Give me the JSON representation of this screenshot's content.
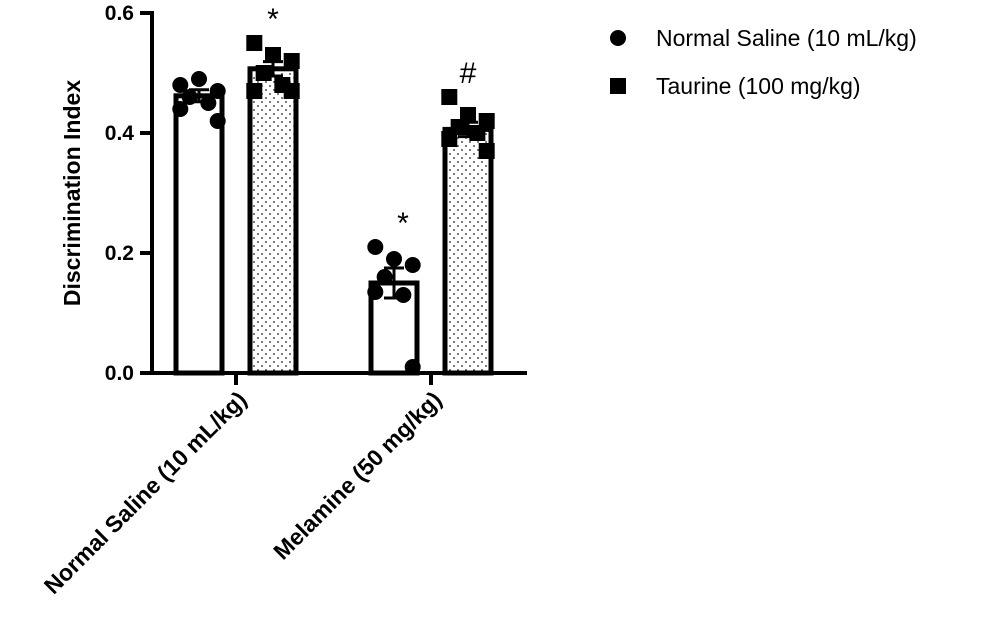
{
  "chart_data": {
    "type": "bar",
    "ylabel": "Discrimination Index",
    "ylim": [
      0.0,
      0.6
    ],
    "yticks": [
      "0.0",
      "0.2",
      "0.4",
      "0.6"
    ],
    "categories": [
      "Normal Saline (10 mL/kg)",
      "Melamine (50 mg/kg)"
    ],
    "legend_position": "top-right",
    "series": [
      {
        "name": "Normal Saline (10 mL/kg)",
        "marker": "circle",
        "fill": "none",
        "values": [
          0.462,
          0.15
        ],
        "sem": [
          0.01,
          0.025
        ],
        "points": [
          [
            0.48,
            0.49,
            0.47,
            0.46,
            0.45,
            0.44,
            0.42
          ],
          [
            0.21,
            0.19,
            0.18,
            0.16,
            0.13,
            0.135,
            0.01
          ]
        ],
        "annotations": [
          "",
          "*"
        ]
      },
      {
        "name": "Taurine (100 mg/kg)",
        "marker": "square",
        "fill": "dots",
        "values": [
          0.507,
          0.406
        ],
        "sem": [
          0.012,
          0.012
        ],
        "points": [
          [
            0.55,
            0.53,
            0.52,
            0.5,
            0.48,
            0.47,
            0.47
          ],
          [
            0.46,
            0.43,
            0.42,
            0.41,
            0.4,
            0.39,
            0.37
          ]
        ],
        "annotations": [
          "*",
          "#"
        ]
      }
    ]
  }
}
